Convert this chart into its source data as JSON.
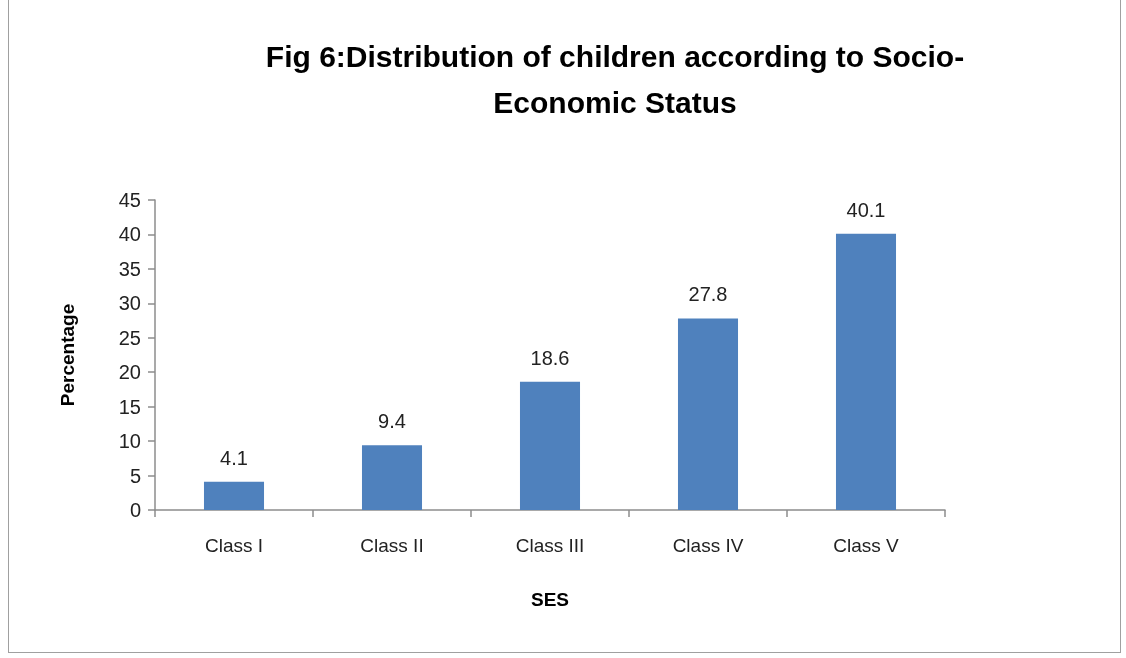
{
  "chart_data": {
    "type": "bar",
    "title": "Fig 6:Distribution of children according to Socio-Economic Status",
    "xlabel": "SES",
    "ylabel": "Percentage",
    "categories": [
      "Class I",
      "Class II",
      "Class III",
      "Class IV",
      "Class V"
    ],
    "values": [
      4.1,
      9.4,
      18.6,
      27.8,
      40.1
    ],
    "color": "#4f81bd",
    "ylim": [
      0,
      45
    ],
    "yticks": [
      0,
      5,
      10,
      15,
      20,
      25,
      30,
      35,
      40,
      45
    ],
    "grid": false,
    "data_labels": true
  }
}
